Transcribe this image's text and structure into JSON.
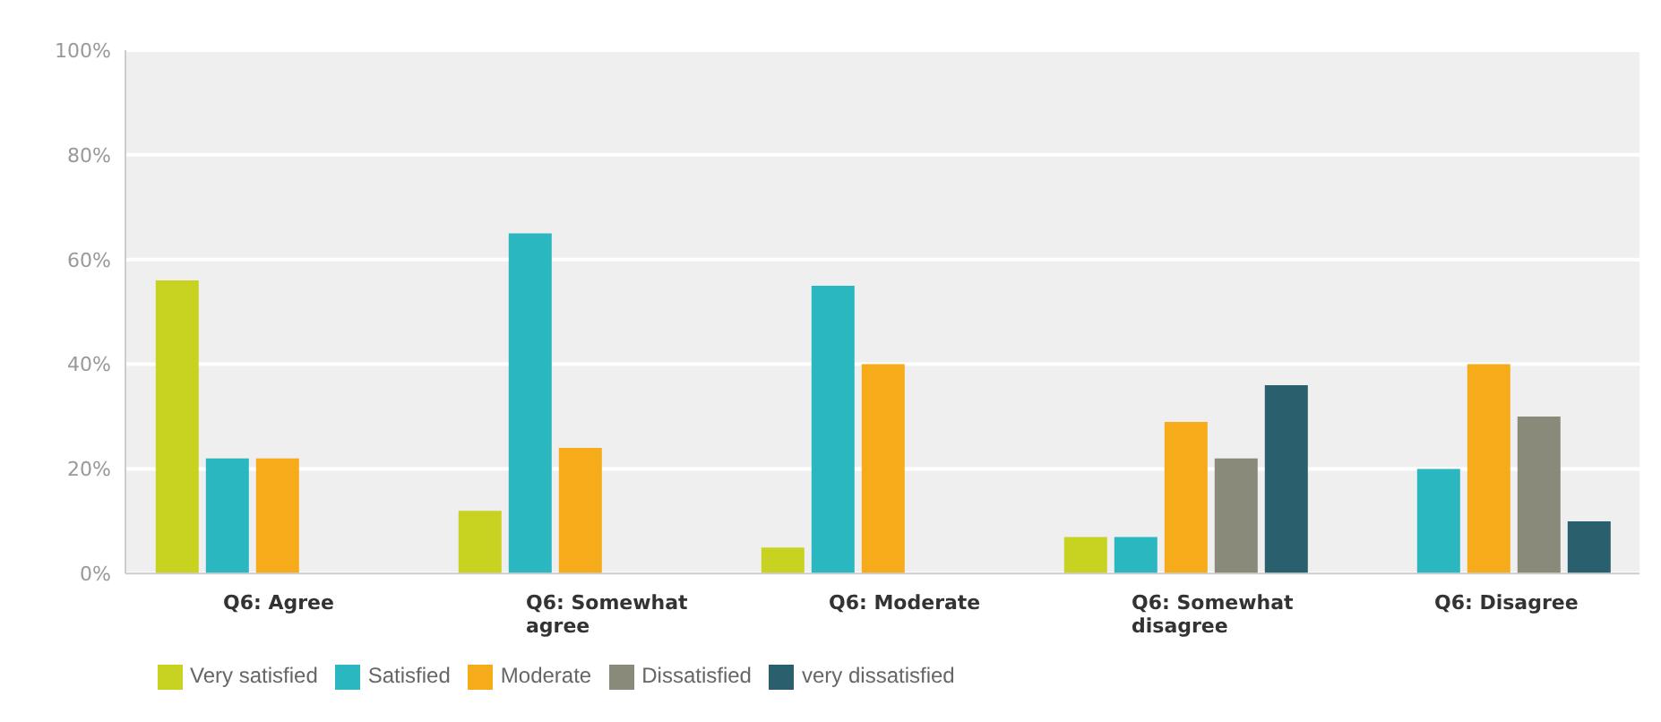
{
  "chart_data": {
    "type": "bar",
    "categories": [
      "Q6: Agree",
      "Q6: Somewhat agree",
      "Q6: Moderate",
      "Q6: Somewhat disagree",
      "Q6: Disagree"
    ],
    "series": [
      {
        "name": "Very satisfied",
        "color": "#c8d321",
        "values": [
          56,
          12,
          5,
          7,
          null
        ]
      },
      {
        "name": "Satisfied",
        "color": "#2bb7c0",
        "values": [
          22,
          65,
          55,
          7,
          20
        ]
      },
      {
        "name": "Moderate",
        "color": "#f6ab1b",
        "values": [
          22,
          24,
          40,
          29,
          40
        ]
      },
      {
        "name": "Dissatisfied",
        "color": "#8a8a7a",
        "values": [
          null,
          null,
          null,
          22,
          30
        ]
      },
      {
        "name": "very dissatisfied",
        "color": "#2a5f6e",
        "values": [
          null,
          null,
          null,
          36,
          10
        ]
      }
    ],
    "ylim": [
      0,
      100
    ],
    "yticks": [
      {
        "value": 0,
        "label": "0%"
      },
      {
        "value": 20,
        "label": "20%"
      },
      {
        "value": 40,
        "label": "40%"
      },
      {
        "value": 60,
        "label": "60%"
      },
      {
        "value": 80,
        "label": "80%"
      },
      {
        "value": 100,
        "label": "100%"
      }
    ],
    "grid": "y",
    "legend": "bottom left"
  }
}
